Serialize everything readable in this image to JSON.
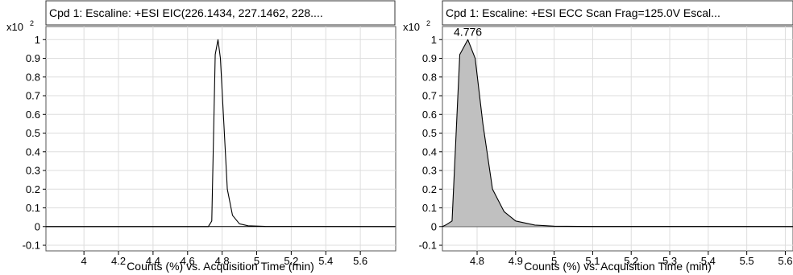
{
  "chart_data": [
    {
      "type": "line",
      "title": "Cpd 1: Escaline: +ESI EIC(226.1434, 227.1462, 228....",
      "xlabel": "Counts (%) vs. Acquisition Time (min)",
      "ylabel": "",
      "y_multiplier": "x10",
      "y_multiplier_exp": "2",
      "xlim": [
        3.78,
        5.8
      ],
      "ylim": [
        -0.13,
        1.07
      ],
      "x_ticks": [
        4,
        4.2,
        4.4,
        4.6,
        4.8,
        5,
        5.2,
        5.4,
        5.6
      ],
      "x_tick_labels": [
        "4",
        "4.2",
        "4.4",
        "4.6",
        "4.8",
        "5",
        "5.2",
        "5.4",
        "5.6"
      ],
      "y_ticks": [
        -0.1,
        0,
        0.1,
        0.2,
        0.3,
        0.4,
        0.5,
        0.6,
        0.7,
        0.8,
        0.9,
        1
      ],
      "y_tick_labels": [
        "-0.1",
        "0",
        "0.1",
        "0.2",
        "0.3",
        "0.4",
        "0.5",
        "0.6",
        "0.7",
        "0.8",
        "0.9",
        "1"
      ],
      "grid": true,
      "filled": false,
      "series": [
        {
          "x": [
            3.78,
            4.72,
            4.74,
            4.76,
            4.776,
            4.79,
            4.81,
            4.83,
            4.86,
            4.9,
            4.95,
            5.05,
            5.8
          ],
          "y": [
            0,
            0,
            0.03,
            0.92,
            1.0,
            0.9,
            0.55,
            0.2,
            0.06,
            0.015,
            0.004,
            0.001,
            0
          ]
        }
      ],
      "annotations": []
    },
    {
      "type": "area",
      "title": "Cpd 1: Escaline: +ESI ECC Scan Frag=125.0V Escal...",
      "xlabel": "Counts (%) vs. Acquisition Time (min)",
      "ylabel": "",
      "y_multiplier": "x10",
      "y_multiplier_exp": "2",
      "xlim": [
        4.71,
        5.62
      ],
      "ylim": [
        -0.13,
        1.07
      ],
      "x_ticks": [
        4.8,
        4.9,
        5,
        5.1,
        5.2,
        5.3,
        5.4,
        5.5,
        5.6
      ],
      "x_tick_labels": [
        "4.8",
        "4.9",
        "5",
        "5.1",
        "5.2",
        "5.3",
        "5.4",
        "5.5",
        "5.6"
      ],
      "y_ticks": [
        -0.1,
        0,
        0.1,
        0.2,
        0.3,
        0.4,
        0.5,
        0.6,
        0.7,
        0.8,
        0.9,
        1
      ],
      "y_tick_labels": [
        "-0.1",
        "0",
        "0.1",
        "0.2",
        "0.3",
        "0.4",
        "0.5",
        "0.6",
        "0.7",
        "0.8",
        "0.9",
        "1"
      ],
      "grid": true,
      "filled": true,
      "fill_color": "#c0c0c0",
      "series": [
        {
          "x": [
            4.71,
            4.72,
            4.735,
            4.755,
            4.776,
            4.795,
            4.815,
            4.84,
            4.87,
            4.9,
            4.95,
            5.0,
            5.1,
            5.62
          ],
          "y": [
            0,
            0.01,
            0.03,
            0.92,
            1.0,
            0.9,
            0.55,
            0.2,
            0.08,
            0.03,
            0.008,
            0.002,
            0.0005,
            0
          ]
        }
      ],
      "annotations": [
        {
          "text": "4.776",
          "x": 4.776,
          "y": 1.0
        }
      ]
    }
  ]
}
